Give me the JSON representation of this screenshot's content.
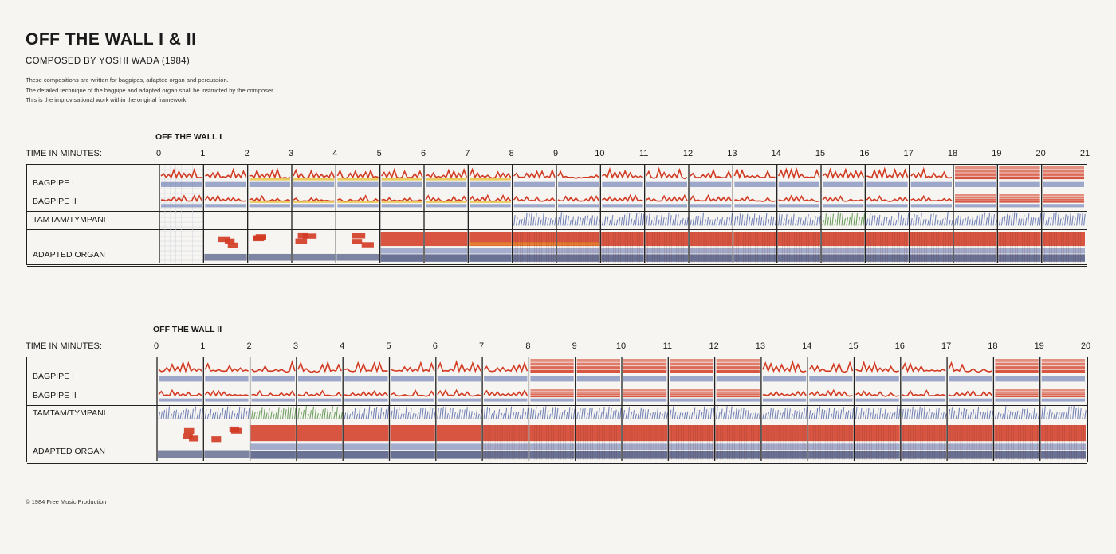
{
  "header": {
    "title": "OFF THE WALL I & II",
    "subtitle": "COMPOSED BY YOSHI WADA (1984)",
    "description": [
      "These compositions are written for bagpipes, adapted organ and percussion.",
      "The detailed technique of the bagpipe and adapted organ shall be instructed by the composer.",
      "This is the improvisational work within the original framework."
    ]
  },
  "scores": [
    {
      "name": "OFF THE WALL I",
      "time_label": "TIME IN MINUTES:",
      "minutes": [
        "0",
        "1",
        "2",
        "3",
        "4",
        "5",
        "6",
        "7",
        "8",
        "9",
        "10",
        "11",
        "12",
        "13",
        "14",
        "15",
        "16",
        "17",
        "18",
        "19",
        "20",
        "21"
      ],
      "rows": [
        "BAGPIPE I",
        "BAGPIPE II",
        "TAMTAM/TYMPANI",
        "ADAPTED ORGAN"
      ]
    },
    {
      "name": "OFF THE WALL II",
      "time_label": "TIME IN MINUTES:",
      "minutes": [
        "0",
        "1",
        "2",
        "3",
        "4",
        "5",
        "6",
        "7",
        "8",
        "9",
        "10",
        "11",
        "12",
        "13",
        "14",
        "15",
        "16",
        "17",
        "18",
        "19",
        "20"
      ],
      "rows": [
        "BAGPIPE I",
        "BAGPIPE II",
        "TAMTAM/TYMPANI",
        "ADAPTED ORGAN"
      ]
    }
  ],
  "colors": {
    "red": "#d23a22",
    "orange": "#e8892a",
    "yellow": "#e8c23a",
    "blue": "#5466a8",
    "navy": "#2d3a6e",
    "green": "#4a8a3a"
  },
  "footer": {
    "copyright": "© 1984 Free Music Production"
  }
}
